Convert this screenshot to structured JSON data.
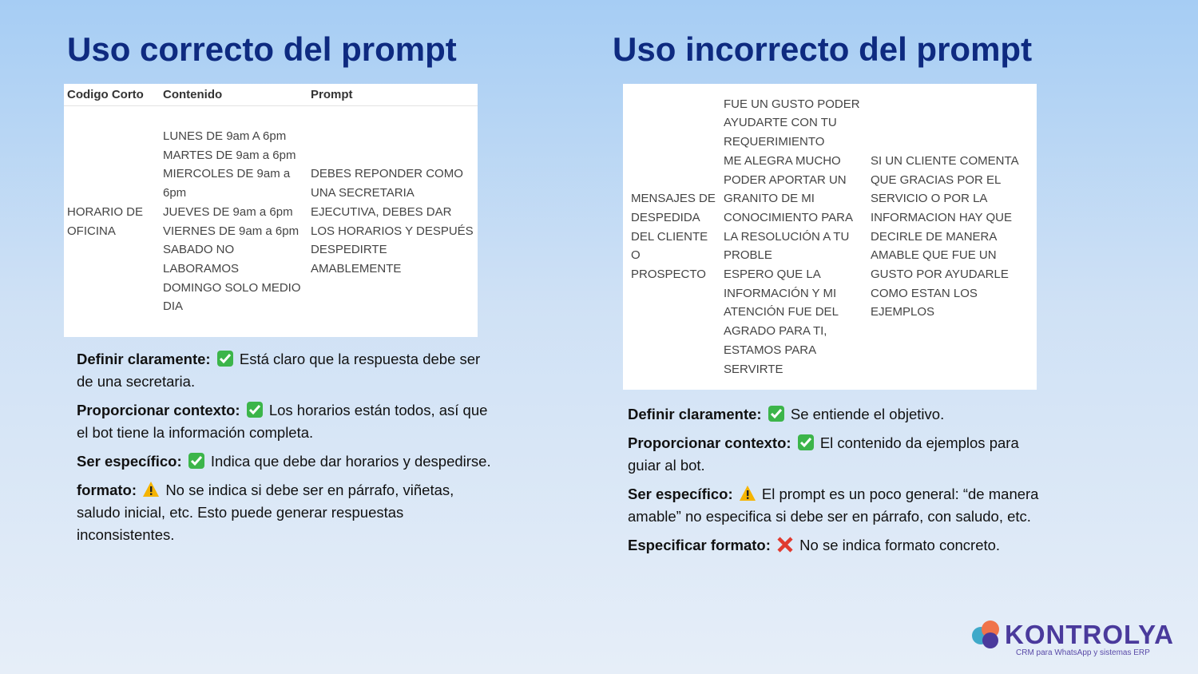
{
  "left": {
    "title": "Uso correcto del prompt",
    "table": {
      "headers": [
        "Codigo Corto",
        "Contenido",
        "Prompt"
      ],
      "rows": [
        {
          "code": "HORARIO DE OFICINA",
          "content": [
            "LUNES DE 9am A 6pm",
            "MARTES DE 9am a 6pm",
            "MIERCOLES DE 9am a 6pm",
            "JUEVES DE 9am a 6pm",
            "VIERNES DE 9am a 6pm",
            "SABADO NO LABORAMOS",
            "DOMINGO SOLO MEDIO DIA"
          ],
          "prompt": "DEBES REPONDER COMO UNA SECRETARIA EJECUTIVA, DEBES DAR LOS HORARIOS Y DESPUÉS DESPEDIRTE AMABLEMENTE"
        }
      ]
    },
    "bullets": [
      {
        "label": "Definir claramente:",
        "icon": "check",
        "text": "Está claro que la respuesta debe ser de una secretaria."
      },
      {
        "label": "Proporcionar contexto:",
        "icon": "check",
        "text": "Los horarios están todos, así que el bot tiene la información completa."
      },
      {
        "label": "Ser específico:",
        "icon": "check",
        "text": "Indica que debe dar horarios y despedirse."
      },
      {
        "label": "formato:",
        "icon": "warning",
        "text": "No se indica si debe ser en párrafo, viñetas, saludo inicial, etc. Esto puede generar respuestas inconsistentes."
      }
    ]
  },
  "right": {
    "title": "Uso incorrecto del prompt",
    "table": {
      "rows": [
        {
          "code": "MENSAJES DE DESPEDIDA DEL CLIENTE O PROSPECTO",
          "content": [
            "FUE UN GUSTO PODER AYUDARTE CON TU REQUERIMIENTO",
            "ME ALEGRA MUCHO PODER APORTAR UN GRANITO DE MI CONOCIMIENTO PARA LA RESOLUCIÓN A TU PROBLE",
            "ESPERO QUE LA INFORMACIÓN Y MI ATENCIÓN FUE DEL AGRADO PARA TI, ESTAMOS PARA SERVIRTE"
          ],
          "prompt": "SI UN CLIENTE COMENTA QUE GRACIAS POR EL SERVICIO O POR LA INFORMACION HAY QUE DECIRLE DE MANERA AMABLE QUE FUE UN GUSTO POR AYUDARLE COMO ESTAN LOS EJEMPLOS"
        }
      ]
    },
    "bullets": [
      {
        "label": "Definir claramente:",
        "icon": "check",
        "text": "Se entiende el objetivo."
      },
      {
        "label": "Proporcionar contexto:",
        "icon": "check",
        "text": "El contenido da ejemplos para guiar al bot."
      },
      {
        "label": "Ser específico:",
        "icon": "warning",
        "text": "El prompt es un poco general: “de manera amable” no especifica si debe ser en párrafo, con saludo, etc."
      },
      {
        "label": "Especificar formato:",
        "icon": "cross",
        "text": "No se indica formato concreto."
      }
    ]
  },
  "logo": {
    "name": "KONTROLYA",
    "tagline": "CRM para WhatsApp y sistemas ERP"
  }
}
